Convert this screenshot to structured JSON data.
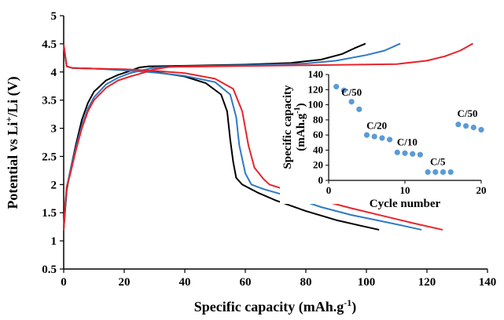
{
  "chart_data": [
    {
      "type": "line",
      "xlabel_main": "Specific capacity (mAh.g",
      "xlabel_sup": "-1",
      "xlabel_end": ")",
      "ylabel_main": "Potential vs Li",
      "ylabel_sup": "+",
      "ylabel_end": "/Li (V)",
      "xlim": [
        0,
        140
      ],
      "ylim": [
        0.5,
        5
      ],
      "x_ticks": [
        "0",
        "20",
        "40",
        "60",
        "80",
        "100",
        "120",
        "140"
      ],
      "y_ticks": [
        "0.5",
        "1",
        "1.5",
        "2",
        "2.5",
        "3",
        "3.5",
        "4",
        "4.5",
        "5"
      ],
      "grid": false,
      "series": [
        {
          "color": "#000000",
          "charge": [
            [
              0,
              1.2
            ],
            [
              0.5,
              1.55
            ],
            [
              1,
              1.9
            ],
            [
              2,
              2.2
            ],
            [
              4,
              2.7
            ],
            [
              6,
              3.15
            ],
            [
              8,
              3.45
            ],
            [
              10,
              3.65
            ],
            [
              14,
              3.85
            ],
            [
              18,
              3.95
            ],
            [
              22,
              4.02
            ],
            [
              25,
              4.08
            ],
            [
              28,
              4.1
            ],
            [
              40,
              4.11
            ],
            [
              60,
              4.13
            ],
            [
              75,
              4.16
            ],
            [
              85,
              4.22
            ],
            [
              92,
              4.32
            ],
            [
              96,
              4.42
            ],
            [
              99.5,
              4.5
            ]
          ],
          "discharge": [
            [
              0,
              4.48
            ],
            [
              1,
              4.1
            ],
            [
              3,
              4.07
            ],
            [
              10,
              4.06
            ],
            [
              20,
              4.04
            ],
            [
              30,
              4.0
            ],
            [
              40,
              3.92
            ],
            [
              47,
              3.8
            ],
            [
              52,
              3.6
            ],
            [
              54,
              3.3
            ],
            [
              55,
              2.8
            ],
            [
              56,
              2.4
            ],
            [
              57,
              2.12
            ],
            [
              59,
              2.0
            ],
            [
              64,
              1.86
            ],
            [
              70,
              1.72
            ],
            [
              80,
              1.53
            ],
            [
              90,
              1.37
            ],
            [
              98,
              1.27
            ],
            [
              104,
              1.2
            ]
          ]
        },
        {
          "color": "#2e79c4",
          "charge": [
            [
              0,
              1.2
            ],
            [
              0.5,
              1.6
            ],
            [
              1,
              1.95
            ],
            [
              2,
              2.2
            ],
            [
              4,
              2.65
            ],
            [
              6,
              3.05
            ],
            [
              8,
              3.35
            ],
            [
              10,
              3.55
            ],
            [
              14,
              3.78
            ],
            [
              18,
              3.9
            ],
            [
              22,
              3.98
            ],
            [
              26,
              4.03
            ],
            [
              30,
              4.08
            ],
            [
              40,
              4.1
            ],
            [
              60,
              4.12
            ],
            [
              80,
              4.15
            ],
            [
              90,
              4.2
            ],
            [
              100,
              4.3
            ],
            [
              106,
              4.38
            ],
            [
              111,
              4.5
            ]
          ],
          "discharge": [
            [
              0,
              4.48
            ],
            [
              1,
              4.1
            ],
            [
              3,
              4.07
            ],
            [
              10,
              4.06
            ],
            [
              20,
              4.03
            ],
            [
              30,
              3.99
            ],
            [
              40,
              3.93
            ],
            [
              50,
              3.82
            ],
            [
              55,
              3.6
            ],
            [
              57,
              3.2
            ],
            [
              58,
              2.7
            ],
            [
              60,
              2.2
            ],
            [
              62,
              2.0
            ],
            [
              66,
              1.92
            ],
            [
              75,
              1.78
            ],
            [
              85,
              1.6
            ],
            [
              95,
              1.46
            ],
            [
              105,
              1.35
            ],
            [
              112,
              1.27
            ],
            [
              118,
              1.2
            ]
          ]
        },
        {
          "color": "#e8242a",
          "charge": [
            [
              0,
              1.2
            ],
            [
              0.5,
              1.65
            ],
            [
              1,
              1.95
            ],
            [
              2,
              2.15
            ],
            [
              4,
              2.6
            ],
            [
              6,
              3.0
            ],
            [
              8,
              3.3
            ],
            [
              10,
              3.5
            ],
            [
              14,
              3.72
            ],
            [
              18,
              3.85
            ],
            [
              22,
              3.92
            ],
            [
              26,
              3.98
            ],
            [
              30,
              4.05
            ],
            [
              35,
              4.09
            ],
            [
              50,
              4.1
            ],
            [
              80,
              4.12
            ],
            [
              110,
              4.14
            ],
            [
              120,
              4.2
            ],
            [
              126,
              4.28
            ],
            [
              131,
              4.38
            ],
            [
              135,
              4.5
            ]
          ],
          "discharge": [
            [
              0,
              4.48
            ],
            [
              1,
              4.1
            ],
            [
              3,
              4.07
            ],
            [
              10,
              4.06
            ],
            [
              20,
              4.05
            ],
            [
              30,
              4.02
            ],
            [
              40,
              3.98
            ],
            [
              50,
              3.88
            ],
            [
              56,
              3.7
            ],
            [
              59,
              3.3
            ],
            [
              61,
              2.7
            ],
            [
              63,
              2.3
            ],
            [
              66,
              2.1
            ],
            [
              68,
              2.0
            ],
            [
              75,
              1.88
            ],
            [
              85,
              1.72
            ],
            [
              95,
              1.58
            ],
            [
              105,
              1.45
            ],
            [
              115,
              1.32
            ],
            [
              125,
              1.2
            ]
          ]
        }
      ]
    },
    {
      "type": "scatter",
      "xlabel": "Cycle number",
      "ylabel_line1": "Specific capacity",
      "ylabel_line2_main": "(mAh.g",
      "ylabel_line2_sup": "-1",
      "ylabel_line2_end": ")",
      "xlim": [
        0,
        20
      ],
      "ylim": [
        0,
        140
      ],
      "x_ticks": [
        "0",
        "10",
        "20"
      ],
      "y_ticks": [
        "0",
        "20",
        "40",
        "60",
        "80",
        "100",
        "120",
        "140"
      ],
      "color": "#5b9bd5",
      "points": [
        [
          1,
          124
        ],
        [
          2,
          119
        ],
        [
          3,
          104
        ],
        [
          4,
          94
        ],
        [
          5,
          60
        ],
        [
          6,
          58
        ],
        [
          7,
          56
        ],
        [
          8,
          54
        ],
        [
          9,
          37
        ],
        [
          10,
          36
        ],
        [
          11,
          35
        ],
        [
          12,
          34
        ],
        [
          13,
          11
        ],
        [
          14,
          11
        ],
        [
          15,
          11
        ],
        [
          16,
          11
        ],
        [
          17,
          74
        ],
        [
          18,
          72
        ],
        [
          19,
          70
        ],
        [
          20,
          67
        ]
      ],
      "annotations": [
        {
          "text": "C/50",
          "x": 3.0,
          "y": 112
        },
        {
          "text": "C/20",
          "x": 6.3,
          "y": 68
        },
        {
          "text": "C/10",
          "x": 10.3,
          "y": 46
        },
        {
          "text": "C/5",
          "x": 14.3,
          "y": 20
        },
        {
          "text": "C/50",
          "x": 18.2,
          "y": 84
        }
      ]
    }
  ]
}
